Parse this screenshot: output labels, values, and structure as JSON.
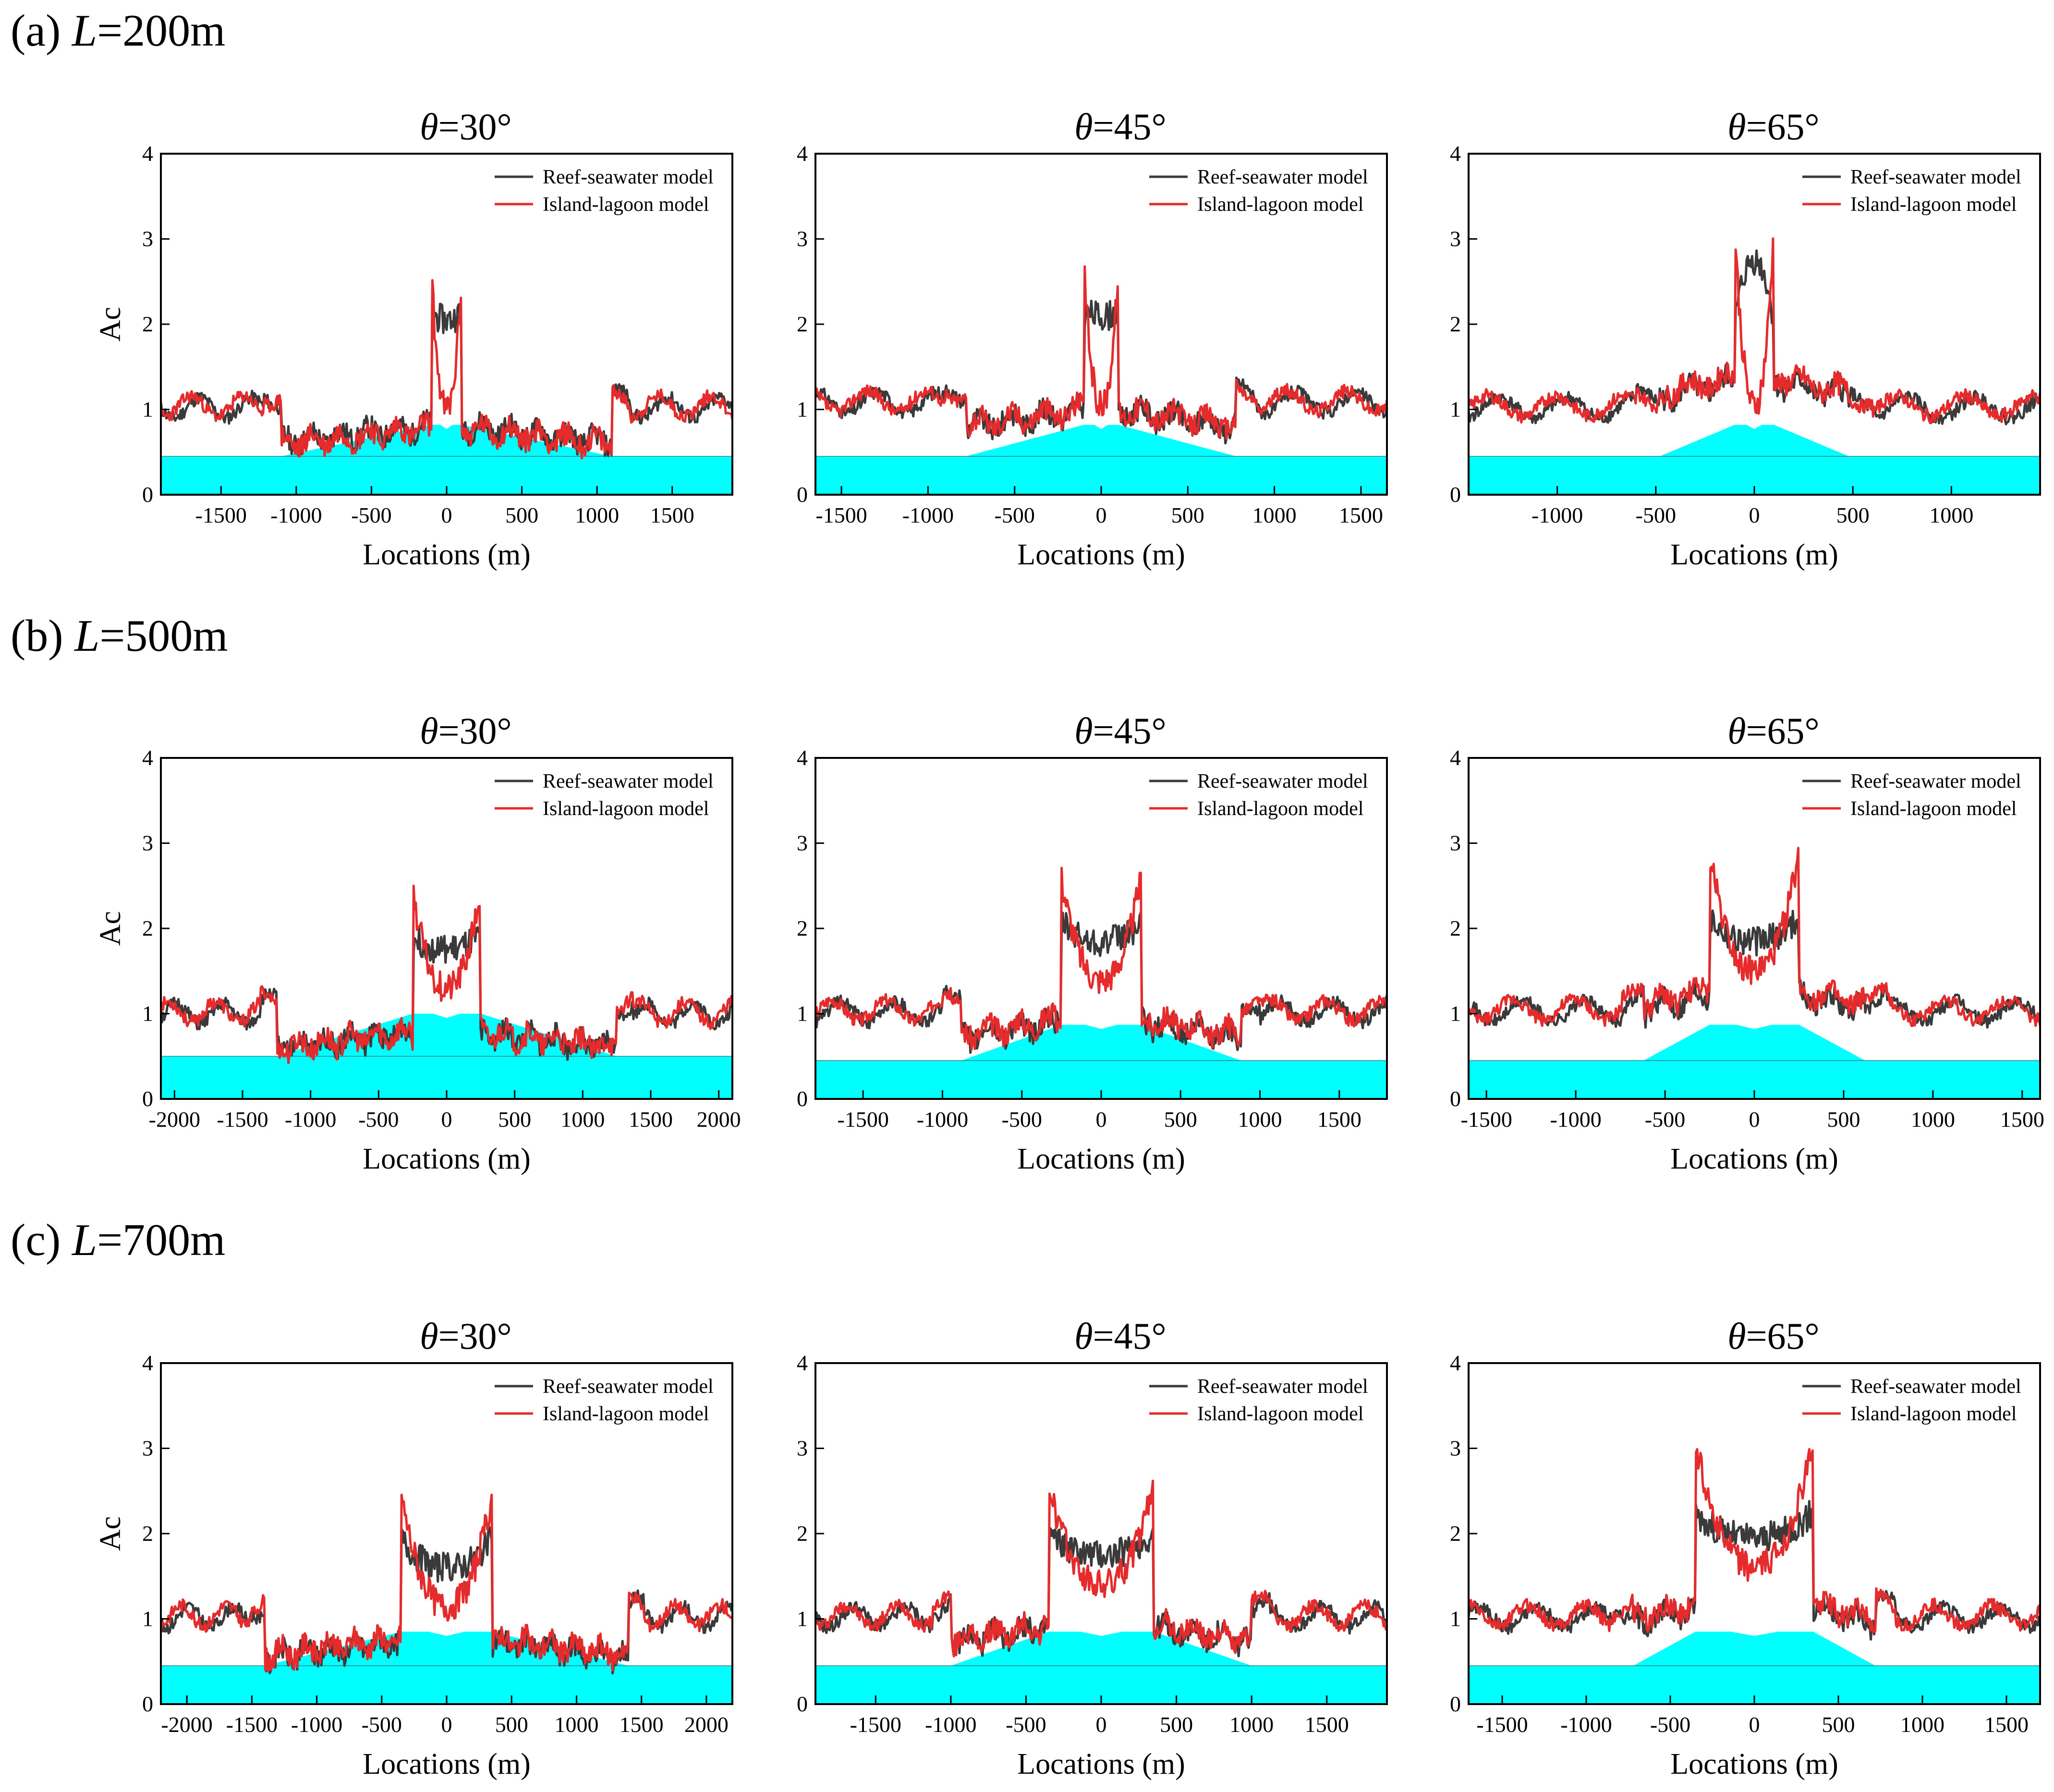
{
  "figure": {
    "legend": {
      "reef": "Reef-seawater model",
      "lagoon": "Island-lagoon model"
    },
    "colors": {
      "reef": "#3a3a3a",
      "lagoon": "#e52b2b",
      "fill": "#00ffff",
      "axis": "#000000"
    }
  },
  "rows": [
    {
      "label_prefix": "(a) ",
      "label_var": "L",
      "label_value": "=200m"
    },
    {
      "label_prefix": "(b) ",
      "label_var": "L",
      "label_value": "=500m"
    },
    {
      "label_prefix": "(c) ",
      "label_var": "L",
      "label_value": "=700m"
    }
  ],
  "chart_data": [
    {
      "type": "line",
      "title_var": "θ",
      "title_value": "=30°",
      "xlabel": "Locations (m)",
      "ylabel": "Ac",
      "xlim": [
        -1900,
        1900
      ],
      "ylim": [
        0,
        4
      ],
      "xticks": [
        "-1500",
        "-1000",
        "-500",
        "0",
        "500",
        "1000",
        "1500"
      ],
      "xtick_values": [
        -1500,
        -1000,
        -500,
        0,
        500,
        1000,
        1500
      ],
      "yticks": [
        "0",
        "1",
        "2",
        "3",
        "4"
      ],
      "reef_half": 1100,
      "center_half": 100,
      "plateau": 0.82,
      "base": 0.45,
      "series": [
        {
          "name": "Reef-seawater model",
          "seed": 11,
          "outside": 1.02,
          "reef_inner": 0.62,
          "center_edge": 2.15,
          "center_mid": 2.05
        },
        {
          "name": "Island-lagoon model",
          "seed": 23,
          "outside": 1.04,
          "reef_inner": 0.6,
          "center_edge": 2.6,
          "center_mid": 1.0
        }
      ]
    },
    {
      "type": "line",
      "title_var": "θ",
      "title_value": "=45°",
      "xlabel": "Locations (m)",
      "ylabel": "",
      "xlim": [
        -1650,
        1650
      ],
      "ylim": [
        0,
        4
      ],
      "xticks": [
        "-1500",
        "-1000",
        "-500",
        "0",
        "500",
        "1000",
        "1500"
      ],
      "xtick_values": [
        -1500,
        -1000,
        -500,
        0,
        500,
        1000,
        1500
      ],
      "yticks": [
        "0",
        "1",
        "2",
        "3",
        "4"
      ],
      "reef_half": 780,
      "center_half": 100,
      "plateau": 0.82,
      "base": 0.45,
      "series": [
        {
          "name": "Reef-seawater model",
          "seed": 31,
          "outside": 1.08,
          "reef_inner": 0.8,
          "center_edge": 2.15,
          "center_mid": 2.1
        },
        {
          "name": "Island-lagoon model",
          "seed": 37,
          "outside": 1.1,
          "reef_inner": 0.82,
          "center_edge": 2.7,
          "center_mid": 1.05
        }
      ]
    },
    {
      "type": "line",
      "title_var": "θ",
      "title_value": "=65°",
      "xlabel": "Locations (m)",
      "ylabel": "",
      "xlim": [
        -1450,
        1450
      ],
      "ylim": [
        0,
        4
      ],
      "xticks": [
        "-1000",
        "-500",
        "0",
        "500",
        "1000"
      ],
      "xtick_values": [
        -1000,
        -500,
        0,
        500,
        1000
      ],
      "yticks": [
        "0",
        "1",
        "2",
        "3",
        "4"
      ],
      "reef_half": 480,
      "center_half": 100,
      "plateau": 0.82,
      "base": 0.45,
      "series": [
        {
          "name": "Reef-seawater model",
          "seed": 41,
          "outside": 1.02,
          "reef_inner": 1.15,
          "center_edge": 2.0,
          "center_mid": 2.75
        },
        {
          "name": "Island-lagoon model",
          "seed": 43,
          "outside": 1.04,
          "reef_inner": 1.2,
          "center_edge": 3.15,
          "center_mid": 1.05
        }
      ]
    },
    {
      "type": "line",
      "title_var": "θ",
      "title_value": "=30°",
      "xlabel": "Locations (m)",
      "ylabel": "Ac",
      "xlim": [
        -2100,
        2100
      ],
      "ylim": [
        0,
        4
      ],
      "xticks": [
        "-2000",
        "-1500",
        "-1000",
        "-500",
        "0",
        "500",
        "1000",
        "1500",
        "2000"
      ],
      "xtick_values": [
        -2000,
        -1500,
        -1000,
        -500,
        0,
        500,
        1000,
        1500,
        2000
      ],
      "yticks": [
        "0",
        "1",
        "2",
        "3",
        "4"
      ],
      "reef_half": 1250,
      "center_half": 250,
      "plateau": 1.0,
      "base": 0.5,
      "series": [
        {
          "name": "Reef-seawater model",
          "seed": 51,
          "outside": 1.0,
          "reef_inner": 0.6,
          "center_edge": 1.9,
          "center_mid": 1.75
        },
        {
          "name": "Island-lagoon model",
          "seed": 53,
          "outside": 1.02,
          "reef_inner": 0.6,
          "center_edge": 2.45,
          "center_mid": 1.3
        }
      ]
    },
    {
      "type": "line",
      "title_var": "θ",
      "title_value": "=45°",
      "xlabel": "Locations (m)",
      "ylabel": "",
      "xlim": [
        -1800,
        1800
      ],
      "ylim": [
        0,
        4
      ],
      "xticks": [
        "-1500",
        "-1000",
        "-500",
        "0",
        "500",
        "1000",
        "1500"
      ],
      "xtick_values": [
        -1500,
        -1000,
        -500,
        0,
        500,
        1000,
        1500
      ],
      "yticks": [
        "0",
        "1",
        "2",
        "3",
        "4"
      ],
      "reef_half": 880,
      "center_half": 250,
      "plateau": 0.87,
      "base": 0.45,
      "series": [
        {
          "name": "Reef-seawater model",
          "seed": 61,
          "outside": 1.02,
          "reef_inner": 0.72,
          "center_edge": 2.05,
          "center_mid": 1.85
        },
        {
          "name": "Island-lagoon model",
          "seed": 67,
          "outside": 1.04,
          "reef_inner": 0.76,
          "center_edge": 2.6,
          "center_mid": 1.4
        }
      ]
    },
    {
      "type": "line",
      "title_var": "θ",
      "title_value": "=65°",
      "xlabel": "Locations (m)",
      "ylabel": "",
      "xlim": [
        -1600,
        1600
      ],
      "ylim": [
        0,
        4
      ],
      "xticks": [
        "-1500",
        "-1000",
        "-500",
        "0",
        "500",
        "1000",
        "1500"
      ],
      "xtick_values": [
        -1500,
        -1000,
        -500,
        0,
        500,
        1000,
        1500
      ],
      "yticks": [
        "0",
        "1",
        "2",
        "3",
        "4"
      ],
      "reef_half": 620,
      "center_half": 250,
      "plateau": 0.87,
      "base": 0.45,
      "series": [
        {
          "name": "Reef-seawater model",
          "seed": 71,
          "outside": 1.03,
          "reef_inner": 1.05,
          "center_edge": 2.15,
          "center_mid": 1.85
        },
        {
          "name": "Island-lagoon model",
          "seed": 73,
          "outside": 1.05,
          "reef_inner": 1.1,
          "center_edge": 2.9,
          "center_mid": 1.5
        }
      ]
    },
    {
      "type": "line",
      "title_var": "θ",
      "title_value": "=30°",
      "xlabel": "Locations (m)",
      "ylabel": "Ac",
      "xlim": [
        -2200,
        2200
      ],
      "ylim": [
        0,
        4
      ],
      "xticks": [
        "-2000",
        "-1500",
        "-1000",
        "-500",
        "0",
        "500",
        "1000",
        "1500",
        "2000"
      ],
      "xtick_values": [
        -2000,
        -1500,
        -1000,
        -500,
        0,
        500,
        1000,
        1500,
        2000
      ],
      "yticks": [
        "0",
        "1",
        "2",
        "3",
        "4"
      ],
      "reef_half": 1400,
      "center_half": 350,
      "plateau": 0.85,
      "base": 0.45,
      "series": [
        {
          "name": "Reef-seawater model",
          "seed": 81,
          "outside": 1.02,
          "reef_inner": 0.55,
          "center_edge": 1.95,
          "center_mid": 1.6
        },
        {
          "name": "Island-lagoon model",
          "seed": 83,
          "outside": 1.04,
          "reef_inner": 0.58,
          "center_edge": 2.45,
          "center_mid": 1.15
        }
      ]
    },
    {
      "type": "line",
      "title_var": "θ",
      "title_value": "=45°",
      "xlabel": "Locations (m)",
      "ylabel": "",
      "xlim": [
        -1900,
        1900
      ],
      "ylim": [
        0,
        4
      ],
      "xticks": [
        "-1500",
        "-1000",
        "-500",
        "0",
        "500",
        "1000",
        "1500"
      ],
      "xtick_values": [
        -1500,
        -1000,
        -500,
        0,
        500,
        1000,
        1500
      ],
      "yticks": [
        "0",
        "1",
        "2",
        "3",
        "4"
      ],
      "reef_half": 1000,
      "center_half": 350,
      "plateau": 0.85,
      "base": 0.45,
      "series": [
        {
          "name": "Reef-seawater model",
          "seed": 91,
          "outside": 1.02,
          "reef_inner": 0.72,
          "center_edge": 2.0,
          "center_mid": 1.75
        },
        {
          "name": "Island-lagoon model",
          "seed": 97,
          "outside": 1.04,
          "reef_inner": 0.74,
          "center_edge": 2.55,
          "center_mid": 1.4
        }
      ]
    },
    {
      "type": "line",
      "title_var": "θ",
      "title_value": "=65°",
      "xlabel": "Locations (m)",
      "ylabel": "",
      "xlim": [
        -1700,
        1700
      ],
      "ylim": [
        0,
        4
      ],
      "xticks": [
        "-1500",
        "-1000",
        "-500",
        "0",
        "500",
        "1000",
        "1500"
      ],
      "xtick_values": [
        -1500,
        -1000,
        -500,
        0,
        500,
        1000,
        1500
      ],
      "yticks": [
        "0",
        "1",
        "2",
        "3",
        "4"
      ],
      "reef_half": 720,
      "center_half": 350,
      "plateau": 0.85,
      "base": 0.45,
      "series": [
        {
          "name": "Reef-seawater model",
          "seed": 101,
          "outside": 1.02,
          "reef_inner": 0.95,
          "center_edge": 2.25,
          "center_mid": 1.95
        },
        {
          "name": "Island-lagoon model",
          "seed": 103,
          "outside": 1.04,
          "reef_inner": 1.0,
          "center_edge": 3.05,
          "center_mid": 1.6
        }
      ]
    }
  ]
}
